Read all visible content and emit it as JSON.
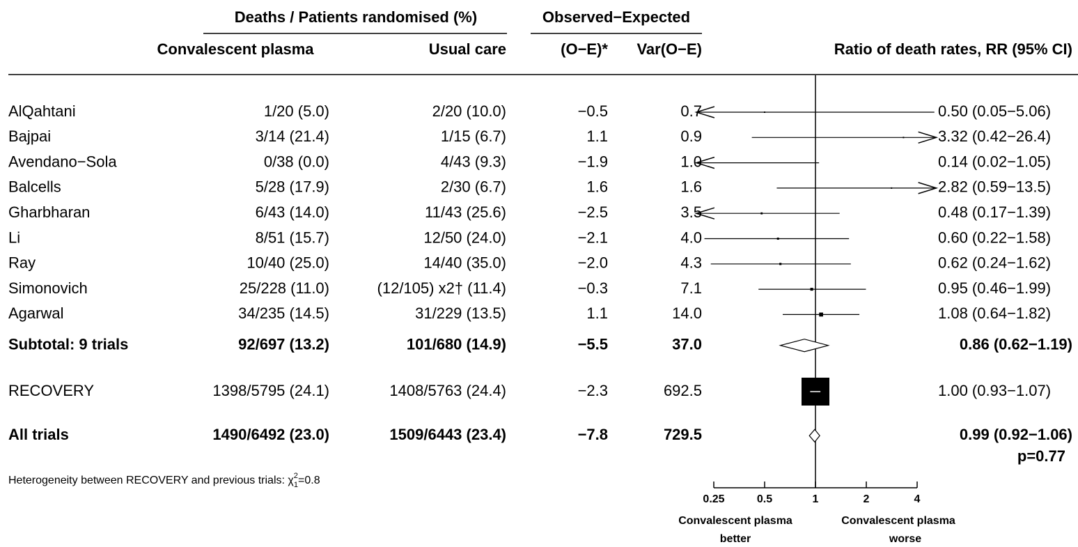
{
  "chart_data": {
    "type": "forest",
    "headers": {
      "group1": "Deaths / Patients randomised (%)",
      "group2": "Observed−Expected",
      "plasma": "Convalescent plasma",
      "usual": "Usual care",
      "oe": "(O−E)*",
      "var": "Var(O−E)",
      "rr": "Ratio of death rates, RR (95% CI)"
    },
    "rows": [
      {
        "name": "AlQahtani",
        "plasma": "1/20 (5.0)",
        "usual": "2/20 (10.0)",
        "oe": "−0.5",
        "var": "0.7",
        "rr": 0.5,
        "lo": 0.05,
        "hi": 5.06,
        "rr_label": "0.50 (0.05−5.06)",
        "marker": "box",
        "bold": false
      },
      {
        "name": "Bajpai",
        "plasma": "3/14 (21.4)",
        "usual": "1/15 (6.7)",
        "oe": "1.1",
        "var": "0.9",
        "rr": 3.32,
        "lo": 0.42,
        "hi": 26.4,
        "rr_label": "3.32 (0.42−26.4)",
        "marker": "box",
        "bold": false
      },
      {
        "name": "Avendano−Sola",
        "plasma": "0/38 (0.0)",
        "usual": "4/43 (9.3)",
        "oe": "−1.9",
        "var": "1.0",
        "rr": 0.14,
        "lo": 0.02,
        "hi": 1.05,
        "rr_label": "0.14 (0.02−1.05)",
        "marker": "box",
        "bold": false
      },
      {
        "name": "Balcells",
        "plasma": "5/28 (17.9)",
        "usual": "2/30 (6.7)",
        "oe": "1.6",
        "var": "1.6",
        "rr": 2.82,
        "lo": 0.59,
        "hi": 13.5,
        "rr_label": "2.82 (0.59−13.5)",
        "marker": "box",
        "bold": false
      },
      {
        "name": "Gharbharan",
        "plasma": "6/43 (14.0)",
        "usual": "11/43 (25.6)",
        "oe": "−2.5",
        "var": "3.5",
        "rr": 0.48,
        "lo": 0.17,
        "hi": 1.39,
        "rr_label": "0.48 (0.17−1.39)",
        "marker": "box",
        "bold": false
      },
      {
        "name": "Li",
        "plasma": "8/51 (15.7)",
        "usual": "12/50 (24.0)",
        "oe": "−2.1",
        "var": "4.0",
        "rr": 0.6,
        "lo": 0.22,
        "hi": 1.58,
        "rr_label": "0.60 (0.22−1.58)",
        "marker": "box",
        "bold": false
      },
      {
        "name": "Ray",
        "plasma": "10/40 (25.0)",
        "usual": "14/40 (35.0)",
        "oe": "−2.0",
        "var": "4.3",
        "rr": 0.62,
        "lo": 0.24,
        "hi": 1.62,
        "rr_label": "0.62 (0.24−1.62)",
        "marker": "box",
        "bold": false
      },
      {
        "name": "Simonovich",
        "plasma": "25/228 (11.0)",
        "usual": "(12/105) x2† (11.4)",
        "oe": "−0.3",
        "var": "7.1",
        "rr": 0.95,
        "lo": 0.46,
        "hi": 1.99,
        "rr_label": "0.95 (0.46−1.99)",
        "marker": "box",
        "bold": false
      },
      {
        "name": "Agarwal",
        "plasma": "34/235 (14.5)",
        "usual": "31/229 (13.5)",
        "oe": "1.1",
        "var": "14.0",
        "rr": 1.08,
        "lo": 0.64,
        "hi": 1.82,
        "rr_label": "1.08 (0.64−1.82)",
        "marker": "box",
        "bold": false
      },
      {
        "name": "Subtotal: 9 trials",
        "plasma": "92/697 (13.2)",
        "usual": "101/680 (14.9)",
        "oe": "−5.5",
        "var": "37.0",
        "rr": 0.86,
        "lo": 0.62,
        "hi": 1.19,
        "rr_label": "0.86 (0.62−1.19)",
        "marker": "diamond",
        "bold": true
      },
      {
        "name": "RECOVERY",
        "plasma": "1398/5795 (24.1)",
        "usual": "1408/5763 (24.4)",
        "oe": "−2.3",
        "var": "692.5",
        "rr": 1.0,
        "lo": 0.93,
        "hi": 1.07,
        "rr_label": "1.00 (0.93−1.07)",
        "marker": "box",
        "bold": false
      },
      {
        "name": "All trials",
        "plasma": "1490/6492 (23.0)",
        "usual": "1509/6443 (23.4)",
        "oe": "−7.8",
        "var": "729.5",
        "rr": 0.99,
        "lo": 0.92,
        "hi": 1.06,
        "rr_label": "0.99 (0.92−1.06)",
        "marker": "diamond",
        "bold": true
      }
    ],
    "p_value": "p=0.77",
    "footnote": {
      "text": "Heterogeneity between RECOVERY and previous trials: χ",
      "sup": "2",
      "sub": "1",
      "tail": "=0.8"
    },
    "log_x": true,
    "xlim": [
      0.197,
      5.2
    ],
    "xticks": [
      0.25,
      0.5,
      1,
      2,
      4
    ],
    "reference": 1,
    "x_caption_left": [
      "Convalescent plasma",
      "better"
    ],
    "x_caption_right": [
      "Convalescent plasma",
      "worse"
    ],
    "color": "#000000"
  }
}
